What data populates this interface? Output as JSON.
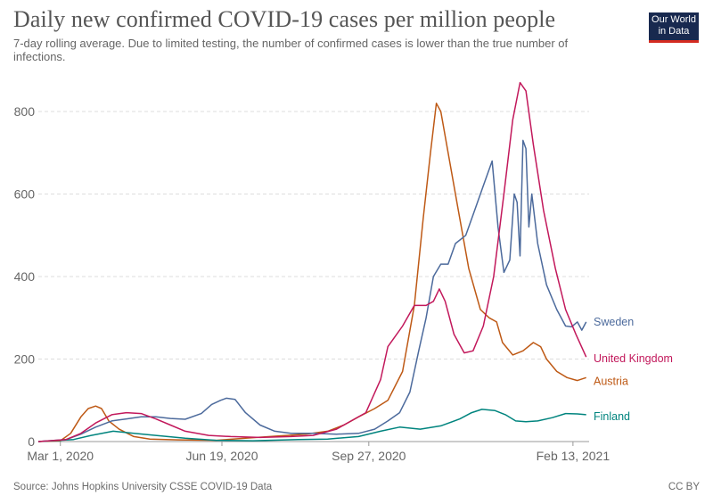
{
  "header": {
    "title": "Daily new confirmed COVID-19 cases per million people",
    "subtitle": "7-day rolling average. Due to limited testing, the number of confirmed cases is lower than the true number of infections."
  },
  "logo": {
    "line1": "Our World",
    "line2": "in Data"
  },
  "footer": {
    "source": "Source: Johns Hopkins University CSSE COVID-19 Data",
    "license": "CC BY"
  },
  "chart_data": {
    "type": "line",
    "title": "Daily new confirmed COVID-19 cases per million people",
    "subtitle": "7-day rolling average. Due to limited testing, the number of confirmed cases is lower than the true number of infections.",
    "xlabel": "",
    "ylabel": "",
    "xlim": [
      "2020-02-15",
      "2021-02-24"
    ],
    "ylim": [
      0,
      880
    ],
    "x_ticks": [
      {
        "date": "2020-03-01",
        "label": "Mar 1, 2020"
      },
      {
        "date": "2020-06-19",
        "label": "Jun 19, 2020"
      },
      {
        "date": "2020-09-27",
        "label": "Sep 27, 2020"
      },
      {
        "date": "2021-02-13",
        "label": "Feb 13, 2021"
      }
    ],
    "y_ticks": [
      0,
      200,
      400,
      600,
      800
    ],
    "grid": "horizontal dashed",
    "legend": "labels at right end of lines",
    "series": [
      {
        "name": "Austria",
        "color": "#be5915",
        "points": [
          [
            "2020-02-15",
            0
          ],
          [
            "2020-03-01",
            2
          ],
          [
            "2020-03-08",
            20
          ],
          [
            "2020-03-15",
            60
          ],
          [
            "2020-03-20",
            80
          ],
          [
            "2020-03-25",
            86
          ],
          [
            "2020-03-29",
            80
          ],
          [
            "2020-04-03",
            50
          ],
          [
            "2020-04-10",
            30
          ],
          [
            "2020-04-20",
            12
          ],
          [
            "2020-05-01",
            6
          ],
          [
            "2020-05-20",
            4
          ],
          [
            "2020-06-15",
            3
          ],
          [
            "2020-07-05",
            8
          ],
          [
            "2020-07-25",
            13
          ],
          [
            "2020-08-15",
            18
          ],
          [
            "2020-08-30",
            25
          ],
          [
            "2020-09-10",
            40
          ],
          [
            "2020-09-20",
            60
          ],
          [
            "2020-10-01",
            80
          ],
          [
            "2020-10-10",
            100
          ],
          [
            "2020-10-20",
            170
          ],
          [
            "2020-10-28",
            330
          ],
          [
            "2020-11-03",
            540
          ],
          [
            "2020-11-08",
            700
          ],
          [
            "2020-11-12",
            820
          ],
          [
            "2020-11-15",
            800
          ],
          [
            "2020-11-20",
            700
          ],
          [
            "2020-11-27",
            560
          ],
          [
            "2020-12-04",
            420
          ],
          [
            "2020-12-12",
            320
          ],
          [
            "2020-12-18",
            300
          ],
          [
            "2020-12-23",
            290
          ],
          [
            "2020-12-27",
            240
          ],
          [
            "2021-01-03",
            210
          ],
          [
            "2021-01-10",
            220
          ],
          [
            "2021-01-17",
            240
          ],
          [
            "2021-01-22",
            230
          ],
          [
            "2021-01-26",
            200
          ],
          [
            "2021-02-02",
            170
          ],
          [
            "2021-02-09",
            155
          ],
          [
            "2021-02-16",
            148
          ],
          [
            "2021-02-22",
            155
          ]
        ]
      },
      {
        "name": "Finland",
        "color": "#00847e",
        "points": [
          [
            "2020-02-15",
            0
          ],
          [
            "2020-03-10",
            5
          ],
          [
            "2020-03-22",
            15
          ],
          [
            "2020-04-06",
            25
          ],
          [
            "2020-04-20",
            20
          ],
          [
            "2020-05-05",
            15
          ],
          [
            "2020-05-25",
            8
          ],
          [
            "2020-06-15",
            3
          ],
          [
            "2020-07-10",
            2
          ],
          [
            "2020-08-10",
            5
          ],
          [
            "2020-08-30",
            6
          ],
          [
            "2020-09-20",
            12
          ],
          [
            "2020-10-05",
            25
          ],
          [
            "2020-10-18",
            35
          ],
          [
            "2020-11-01",
            30
          ],
          [
            "2020-11-15",
            38
          ],
          [
            "2020-11-28",
            55
          ],
          [
            "2020-12-06",
            70
          ],
          [
            "2020-12-13",
            78
          ],
          [
            "2020-12-22",
            75
          ],
          [
            "2020-12-29",
            65
          ],
          [
            "2021-01-05",
            50
          ],
          [
            "2021-01-12",
            48
          ],
          [
            "2021-01-20",
            50
          ],
          [
            "2021-01-30",
            58
          ],
          [
            "2021-02-08",
            68
          ],
          [
            "2021-02-16",
            67
          ],
          [
            "2021-02-22",
            65
          ]
        ]
      },
      {
        "name": "Sweden",
        "color": "#4c6a9c",
        "points": [
          [
            "2020-02-15",
            0
          ],
          [
            "2020-03-05",
            5
          ],
          [
            "2020-03-15",
            18
          ],
          [
            "2020-03-25",
            35
          ],
          [
            "2020-04-05",
            50
          ],
          [
            "2020-04-15",
            55
          ],
          [
            "2020-04-25",
            60
          ],
          [
            "2020-05-05",
            60
          ],
          [
            "2020-05-15",
            56
          ],
          [
            "2020-05-25",
            54
          ],
          [
            "2020-06-05",
            68
          ],
          [
            "2020-06-12",
            90
          ],
          [
            "2020-06-18",
            100
          ],
          [
            "2020-06-22",
            105
          ],
          [
            "2020-06-28",
            102
          ],
          [
            "2020-07-05",
            70
          ],
          [
            "2020-07-15",
            40
          ],
          [
            "2020-07-25",
            25
          ],
          [
            "2020-08-05",
            20
          ],
          [
            "2020-08-20",
            20
          ],
          [
            "2020-09-05",
            18
          ],
          [
            "2020-09-20",
            20
          ],
          [
            "2020-10-01",
            30
          ],
          [
            "2020-10-10",
            50
          ],
          [
            "2020-10-18",
            70
          ],
          [
            "2020-10-25",
            120
          ],
          [
            "2020-10-31",
            220
          ],
          [
            "2020-11-05",
            300
          ],
          [
            "2020-11-10",
            400
          ],
          [
            "2020-11-15",
            430
          ],
          [
            "2020-11-20",
            430
          ],
          [
            "2020-11-25",
            480
          ],
          [
            "2020-12-02",
            500
          ],
          [
            "2020-12-08",
            560
          ],
          [
            "2020-12-14",
            620
          ],
          [
            "2020-12-20",
            680
          ],
          [
            "2020-12-24",
            520
          ],
          [
            "2020-12-28",
            410
          ],
          [
            "2021-01-01",
            440
          ],
          [
            "2021-01-04",
            600
          ],
          [
            "2021-01-06",
            580
          ],
          [
            "2021-01-08",
            450
          ],
          [
            "2021-01-10",
            730
          ],
          [
            "2021-01-12",
            710
          ],
          [
            "2021-01-14",
            520
          ],
          [
            "2021-01-16",
            600
          ],
          [
            "2021-01-20",
            480
          ],
          [
            "2021-01-26",
            380
          ],
          [
            "2021-02-02",
            320
          ],
          [
            "2021-02-08",
            280
          ],
          [
            "2021-02-12",
            278
          ],
          [
            "2021-02-16",
            290
          ],
          [
            "2021-02-19",
            270
          ],
          [
            "2021-02-22",
            290
          ]
        ]
      },
      {
        "name": "United Kingdom",
        "color": "#c2185b",
        "points": [
          [
            "2020-02-15",
            0
          ],
          [
            "2020-03-05",
            5
          ],
          [
            "2020-03-15",
            20
          ],
          [
            "2020-03-25",
            45
          ],
          [
            "2020-04-05",
            65
          ],
          [
            "2020-04-15",
            70
          ],
          [
            "2020-04-25",
            68
          ],
          [
            "2020-05-05",
            55
          ],
          [
            "2020-05-15",
            40
          ],
          [
            "2020-05-25",
            25
          ],
          [
            "2020-06-10",
            15
          ],
          [
            "2020-06-25",
            12
          ],
          [
            "2020-07-15",
            10
          ],
          [
            "2020-08-05",
            12
          ],
          [
            "2020-08-20",
            15
          ],
          [
            "2020-09-05",
            30
          ],
          [
            "2020-09-15",
            50
          ],
          [
            "2020-09-25",
            70
          ],
          [
            "2020-10-05",
            150
          ],
          [
            "2020-10-10",
            230
          ],
          [
            "2020-10-20",
            280
          ],
          [
            "2020-10-28",
            330
          ],
          [
            "2020-11-05",
            330
          ],
          [
            "2020-11-10",
            340
          ],
          [
            "2020-11-14",
            370
          ],
          [
            "2020-11-18",
            340
          ],
          [
            "2020-11-24",
            260
          ],
          [
            "2020-12-01",
            215
          ],
          [
            "2020-12-07",
            220
          ],
          [
            "2020-12-14",
            280
          ],
          [
            "2020-12-21",
            400
          ],
          [
            "2020-12-28",
            600
          ],
          [
            "2021-01-03",
            780
          ],
          [
            "2021-01-08",
            870
          ],
          [
            "2021-01-12",
            850
          ],
          [
            "2021-01-17",
            720
          ],
          [
            "2021-01-24",
            560
          ],
          [
            "2021-02-01",
            420
          ],
          [
            "2021-02-08",
            320
          ],
          [
            "2021-02-15",
            260
          ],
          [
            "2021-02-22",
            205
          ]
        ]
      }
    ]
  }
}
